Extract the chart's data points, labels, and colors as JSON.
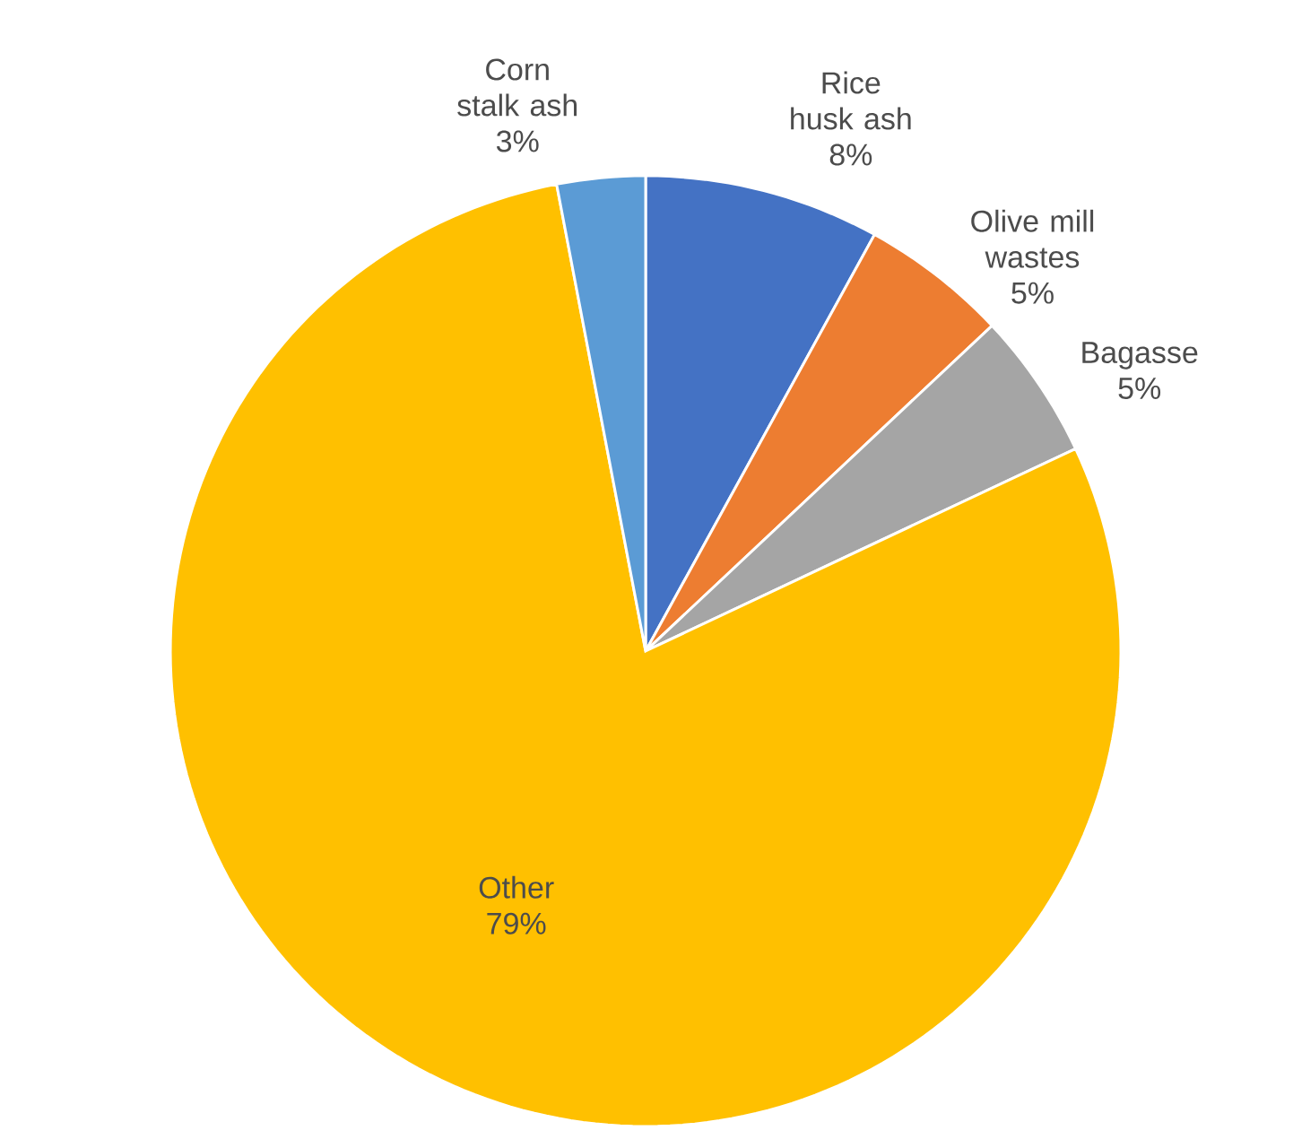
{
  "chart_data": {
    "type": "pie",
    "categories": [
      "Rice husk ash",
      "Olive mill wastes",
      "Bagasse",
      "Other",
      "Corn stalk ash"
    ],
    "values": [
      8,
      5,
      5,
      79,
      3
    ],
    "value_labels": [
      "8%",
      "5%",
      "5%",
      "79%",
      "3%"
    ],
    "colors": [
      "#4472c4",
      "#ed7d31",
      "#a5a5a5",
      "#ffc000",
      "#5b9bd5"
    ]
  }
}
